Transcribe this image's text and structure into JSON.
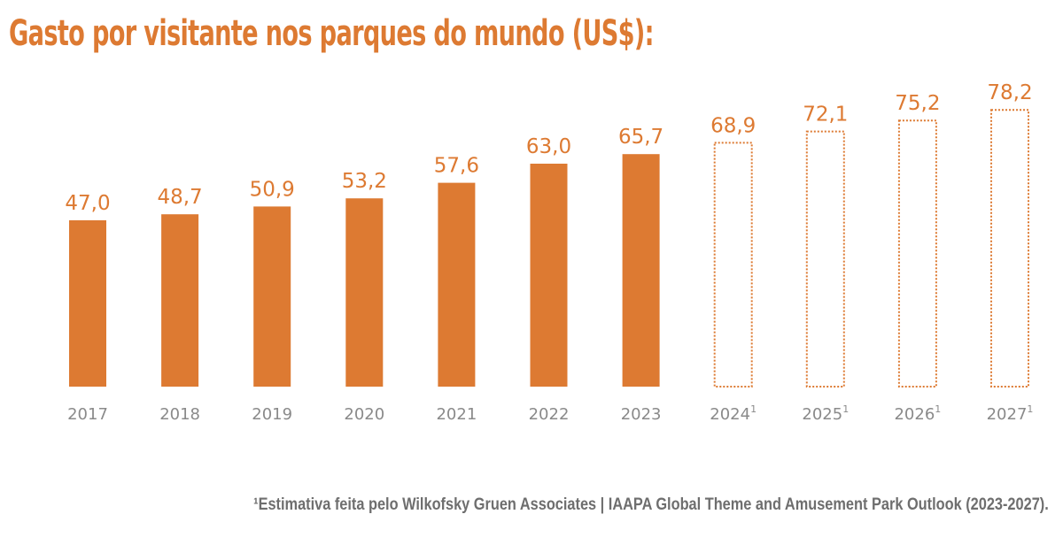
{
  "title": "Gasto por visitante nos parques do mundo (US$):",
  "footnote": "¹Estimativa feita pelo Wilkofsky Gruen Associates | IAAPA Global Theme and Amusement Park Outlook (2023-2027).",
  "colors": {
    "accent": "#dd7a32",
    "axis_text": "#8a8a8a",
    "footnote_text": "#6e6e6e"
  },
  "chart_data": {
    "type": "bar",
    "categories": [
      "2017",
      "2018",
      "2019",
      "2020",
      "2021",
      "2022",
      "2023",
      "2024",
      "2025",
      "2026",
      "2027"
    ],
    "category_superscripts": [
      "",
      "",
      "",
      "",
      "",
      "",
      "",
      "1",
      "1",
      "1",
      "1"
    ],
    "values": [
      47.0,
      48.7,
      50.9,
      53.2,
      57.6,
      63.0,
      65.7,
      68.9,
      72.1,
      75.2,
      78.2
    ],
    "value_labels": [
      "47,0",
      "48,7",
      "50,9",
      "53,2",
      "57,6",
      "63,0",
      "65,7",
      "68,9",
      "72,1",
      "75,2",
      "78,2"
    ],
    "estimated": [
      false,
      false,
      false,
      false,
      false,
      false,
      false,
      true,
      true,
      true,
      true
    ],
    "title": "Gasto por visitante nos parques do mundo (US$):",
    "xlabel": "",
    "ylabel": "",
    "grid": false,
    "legend": "none"
  }
}
